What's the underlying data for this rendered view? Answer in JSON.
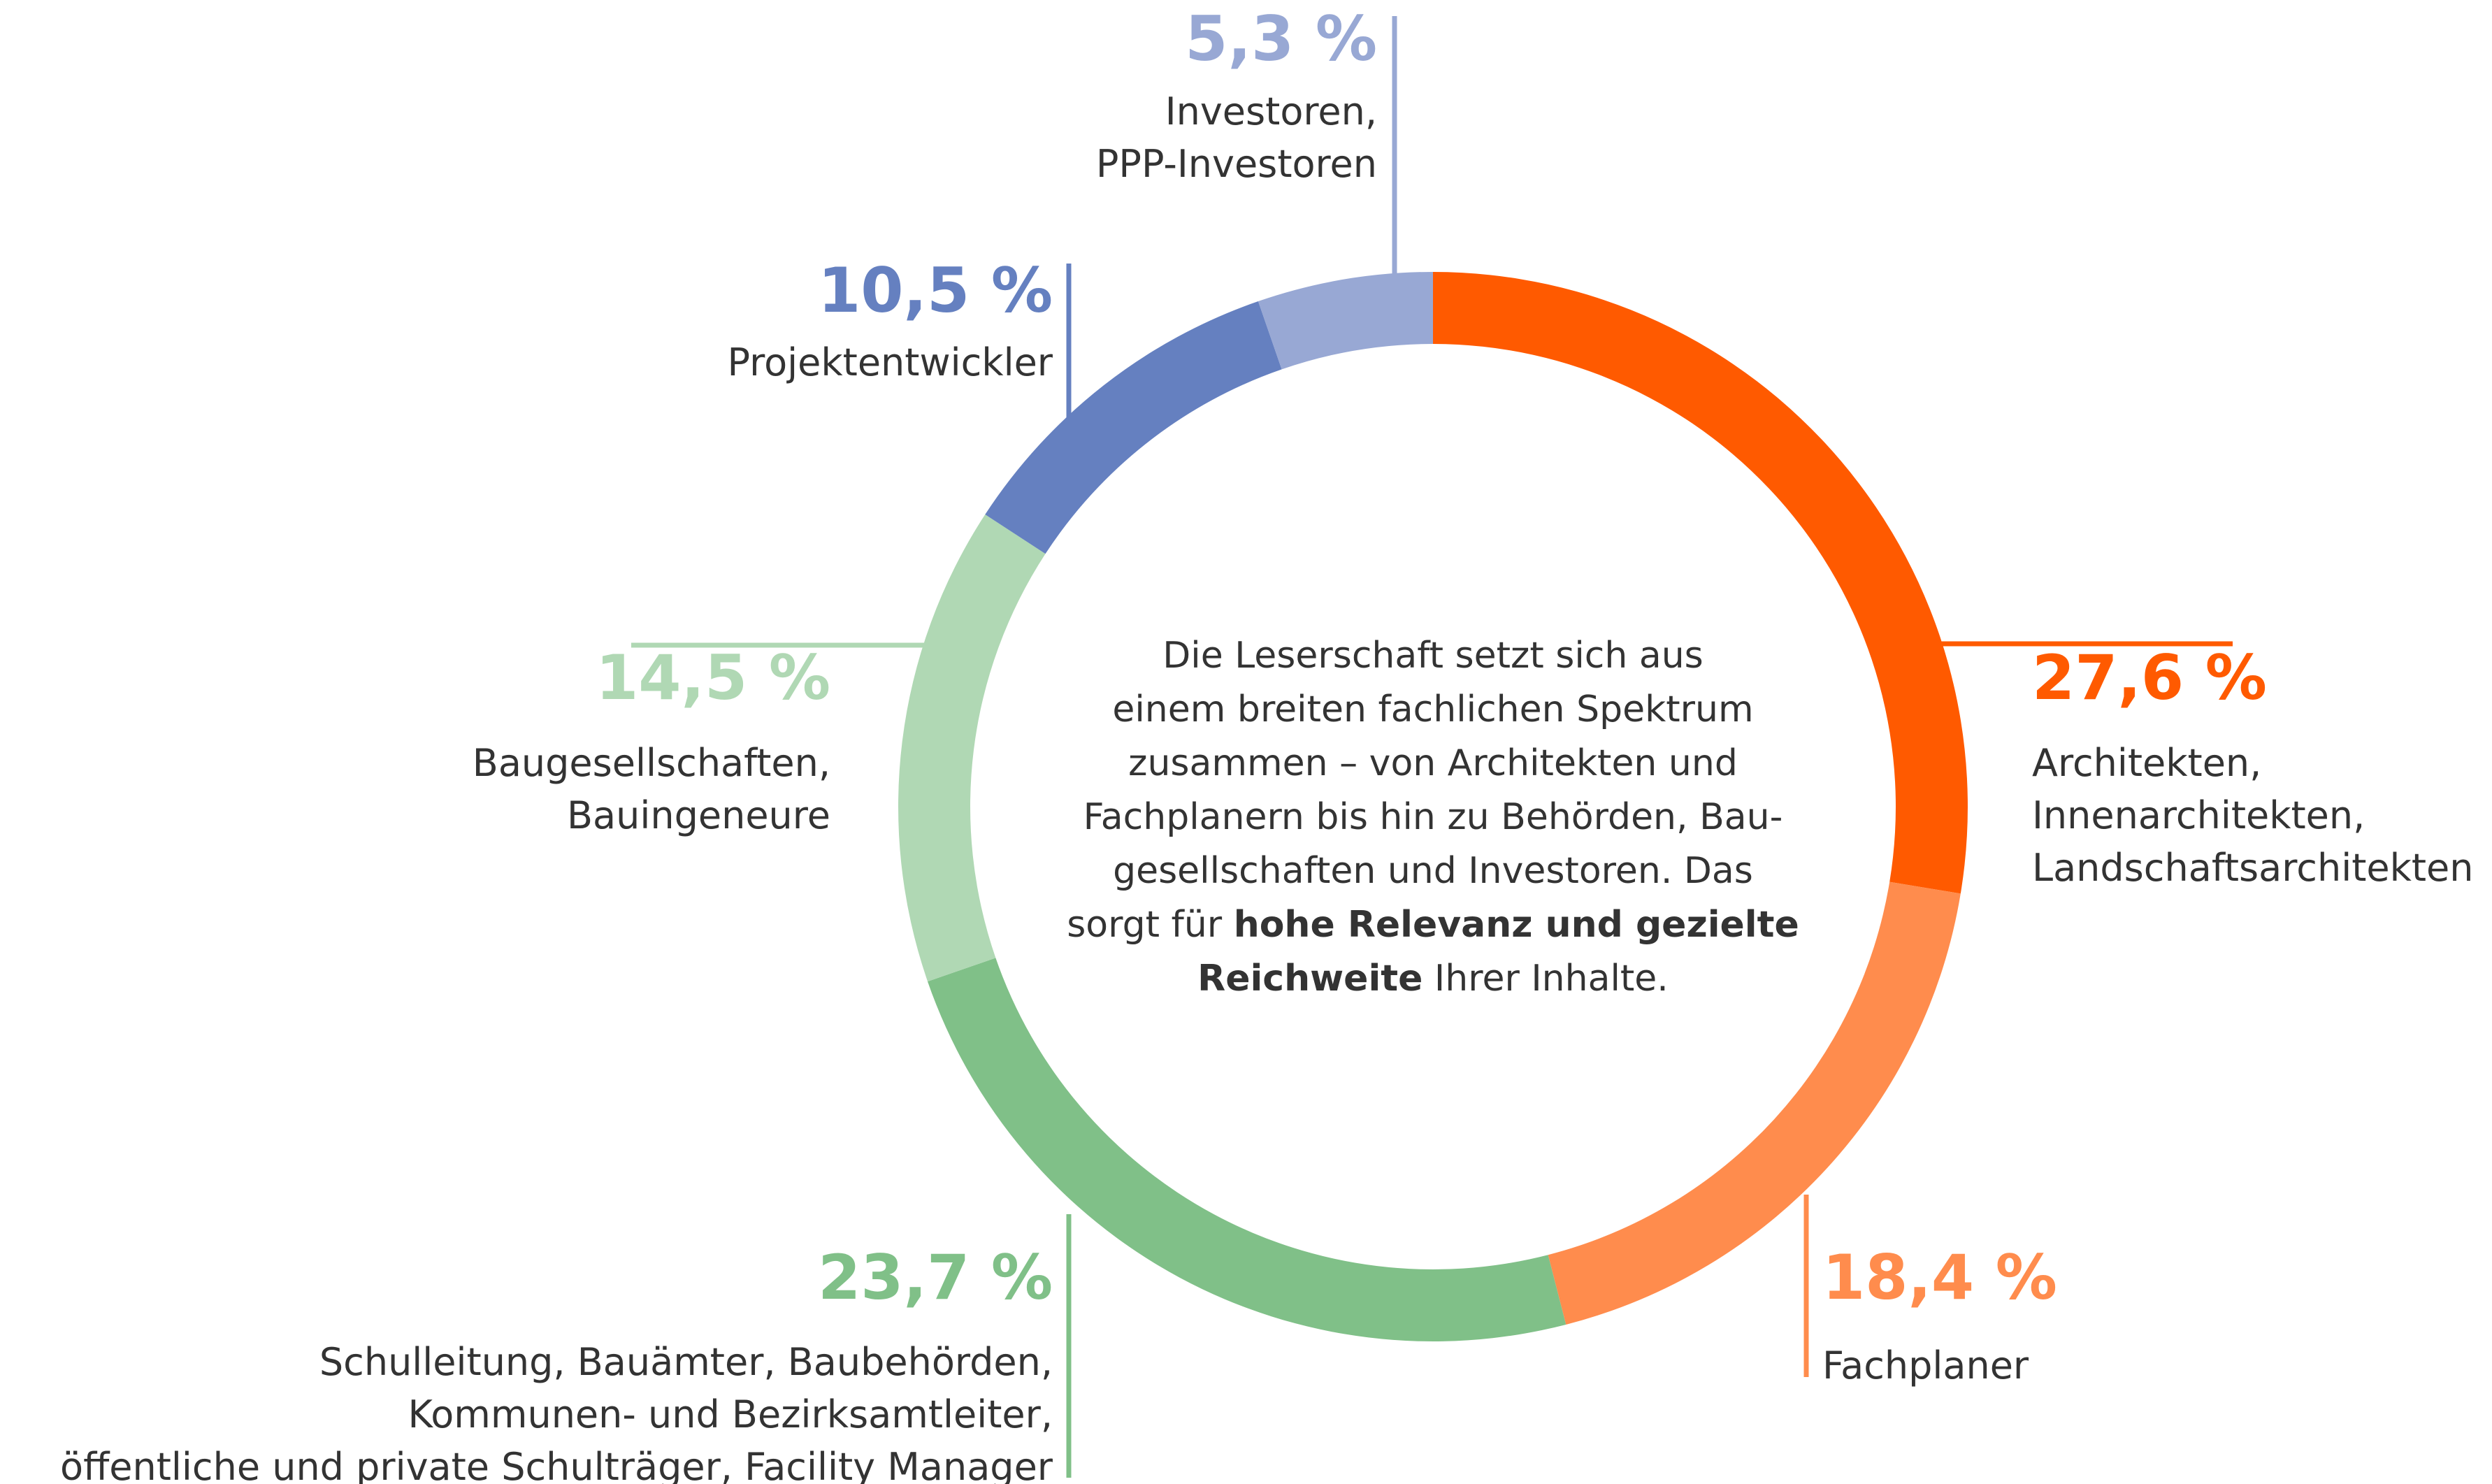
{
  "chart_data": {
    "type": "donut",
    "values": [
      27.6,
      18.4,
      23.7,
      14.5,
      10.5,
      5.3
    ],
    "value_labels": [
      "27,6 %",
      "18,4 %",
      "23,7 %",
      "14,5 %",
      "10,5 %",
      "5,3 %"
    ],
    "colors": [
      "#ff5a00",
      "#ff8c4d",
      "#80c088",
      "#b0d8b4",
      "#6580c0",
      "#98a8d4"
    ],
    "categories": [
      [
        "Architekten,",
        "Innenarchitekten,",
        "Landschaftsarchitekten"
      ],
      [
        "Fachplaner"
      ],
      [
        "Schulleitung, Bauämter, Baubehörden,",
        "Kommunen- und Bezirksamtleiter,",
        "öffentliche und private Schulträger, Facility Manager"
      ],
      [
        "Baugesellschaften,",
        "Bauingeneure"
      ],
      [
        "Projektentwickler"
      ],
      [
        "Investoren,",
        "PPP-Investoren"
      ]
    ],
    "annotation": [
      [
        {
          "text": "Die Leserschaft setzt sich aus",
          "bold": false
        }
      ],
      [
        {
          "text": "einem breiten fachlichen Spektrum",
          "bold": false
        }
      ],
      [
        {
          "text": "zusammen – von Architekten und",
          "bold": false
        }
      ],
      [
        {
          "text": "Fachplanern bis hin zu Behörden, Bau-",
          "bold": false
        }
      ],
      [
        {
          "text": "gesellschaften und Investoren. Das",
          "bold": false
        }
      ],
      [
        {
          "text": "sorgt für ",
          "bold": false
        },
        {
          "text": "hohe Relevanz und gezielte",
          "bold": true
        }
      ],
      [
        {
          "text": "Reichweite",
          "bold": true
        },
        {
          "text": " Ihrer Inhalte.",
          "bold": false
        }
      ]
    ]
  }
}
